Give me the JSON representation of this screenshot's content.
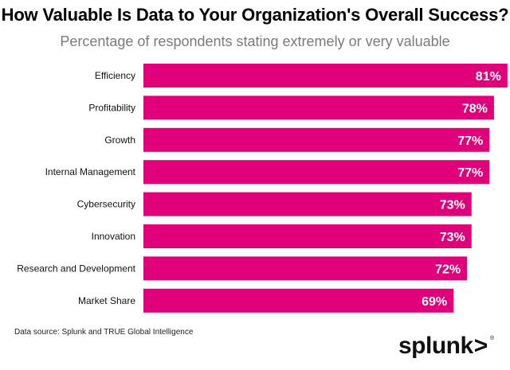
{
  "chart_data": {
    "type": "bar",
    "orientation": "horizontal",
    "title": "How Valuable Is Data to Your Organization's Overall Success?",
    "subtitle": "Percentage of respondents stating extremely or very valuable",
    "categories": [
      "Efficiency",
      "Profitability",
      "Growth",
      "Internal Management",
      "Cybersecurity",
      "Innovation",
      "Research and Development",
      "Market Share"
    ],
    "values": [
      81,
      78,
      77,
      77,
      73,
      73,
      72,
      69
    ],
    "value_labels": [
      "81%",
      "78%",
      "77%",
      "77%",
      "73%",
      "73%",
      "72%",
      "69%"
    ],
    "unit": "%",
    "xlim": [
      0,
      100
    ],
    "grid": false,
    "legend": "none",
    "bar_color": "#e0007a"
  },
  "footer": {
    "source": "Data source: Splunk and TRUE Global Intelligence"
  },
  "brand": {
    "logo_text": "splunk",
    "logo_chevron": ">",
    "logo_mark": "®"
  }
}
